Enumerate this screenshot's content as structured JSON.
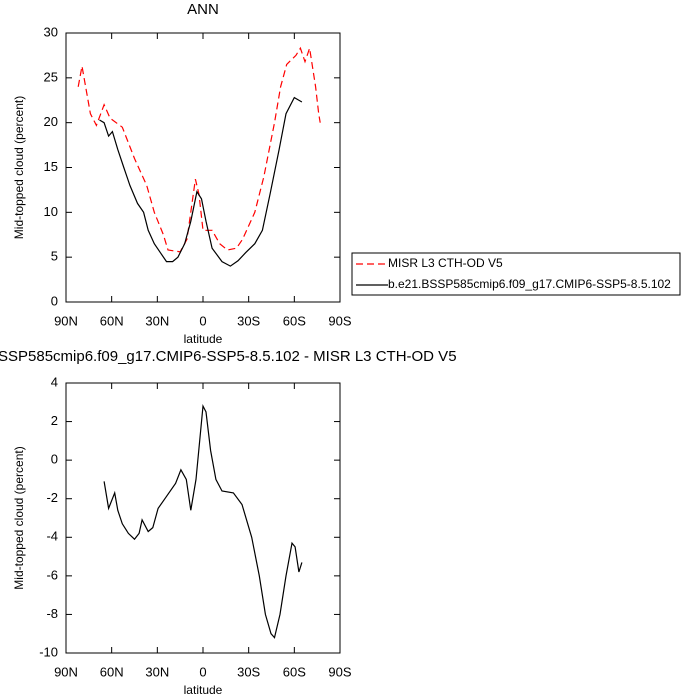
{
  "chart_data": [
    {
      "type": "line",
      "title": "ANN",
      "xlabel": "latitude",
      "ylabel": "Mid-topped cloud (percent)",
      "xlim": [
        90,
        -90
      ],
      "xticks": [
        {
          "value": 90,
          "label": "90N"
        },
        {
          "value": 60,
          "label": "60N"
        },
        {
          "value": 30,
          "label": "30N"
        },
        0,
        {
          "value": -30,
          "label": "30S"
        },
        {
          "value": -60,
          "label": "60S"
        },
        {
          "value": -90,
          "label": "90S"
        }
      ],
      "ylim": [
        0,
        30
      ],
      "yticks": [
        0,
        5,
        10,
        15,
        20,
        25,
        30
      ],
      "legend": "right",
      "series": [
        {
          "name": "MISR L3 CTH-OD V5",
          "color": "#ff0000",
          "dashed": true,
          "x": [
            82,
            79.5,
            74,
            70,
            65,
            61,
            53,
            45,
            37,
            32,
            26,
            23,
            15,
            10.5,
            5,
            2.6,
            0,
            -6,
            -11,
            -16,
            -22,
            -26,
            -34,
            -40,
            -47,
            -51,
            -55,
            -61,
            -64,
            -67,
            -70,
            -74,
            -76,
            -77
          ],
          "values": [
            24,
            26.3,
            21,
            19.7,
            22,
            20.5,
            19.5,
            16,
            13,
            10,
            7.5,
            5.8,
            5.6,
            7,
            13.7,
            12,
            8,
            8,
            6.5,
            5.8,
            6,
            7,
            10,
            14,
            20,
            24,
            26.5,
            27.5,
            28.3,
            26.8,
            28.3,
            24,
            21,
            20
          ]
        },
        {
          "name": "b.e21.BSSP585cmip6.f09_g17.CMIP6-SSP5-8.5.102",
          "color": "#000000",
          "dashed": false,
          "x": [
            68,
            65,
            62,
            59.5,
            56,
            52,
            48,
            43,
            39,
            36,
            32,
            28,
            24,
            20,
            16.5,
            12,
            8,
            4,
            1,
            -2,
            -6,
            -12.5,
            -18,
            -23,
            -28,
            -34,
            -39,
            -44,
            -50,
            -54.5,
            -60,
            -62,
            -65
          ],
          "values": [
            20.3,
            20,
            18.5,
            19,
            17,
            15,
            13,
            11,
            10,
            8,
            6.5,
            5.5,
            4.5,
            4.5,
            5,
            6.5,
            9,
            12.3,
            11.5,
            9,
            6,
            4.5,
            4,
            4.6,
            5.5,
            6.5,
            8,
            12,
            17,
            21,
            22.8,
            22.6,
            22.3
          ]
        }
      ]
    },
    {
      "type": "line",
      "title": "SSP585cmip6.f09_g17.CMIP6-SSP5-8.5.102 - MISR L3 CTH-OD V5",
      "xlabel": "latitude",
      "ylabel": "Mid-topped cloud (percent)",
      "xlim": [
        90,
        -90
      ],
      "xticks": [
        {
          "value": 90,
          "label": "90N"
        },
        {
          "value": 60,
          "label": "60N"
        },
        {
          "value": 30,
          "label": "30N"
        },
        0,
        {
          "value": -30,
          "label": "30S"
        },
        {
          "value": -60,
          "label": "60S"
        },
        {
          "value": -90,
          "label": "90S"
        }
      ],
      "ylim": [
        -10,
        4
      ],
      "yticks": [
        -10,
        -8,
        -6,
        -4,
        -2,
        0,
        2,
        4
      ],
      "series": [
        {
          "color": "#000000",
          "dashed": false,
          "x": [
            65,
            62,
            58,
            56,
            53,
            49,
            45,
            42,
            40,
            36,
            33,
            29.5,
            25,
            18,
            14.5,
            11,
            8,
            4.6,
            0,
            -2,
            -5,
            -8.5,
            -12.5,
            -20,
            -25.6,
            -32,
            -37,
            -41,
            -44.7,
            -47,
            -50.6,
            -54.5,
            -58.5,
            -60.5,
            -63,
            -65
          ],
          "values": [
            -1.1,
            -2.5,
            -1.7,
            -2.6,
            -3.3,
            -3.8,
            -4.1,
            -3.8,
            -3.1,
            -3.7,
            -3.5,
            -2.5,
            -2,
            -1.2,
            -0.5,
            -1,
            -2.6,
            -1,
            2.8,
            2.5,
            0.5,
            -1,
            -1.6,
            -1.7,
            -2.3,
            -4,
            -6,
            -8,
            -9,
            -9.2,
            -8,
            -6,
            -4.3,
            -4.5,
            -5.8,
            -5.3
          ]
        }
      ]
    }
  ]
}
